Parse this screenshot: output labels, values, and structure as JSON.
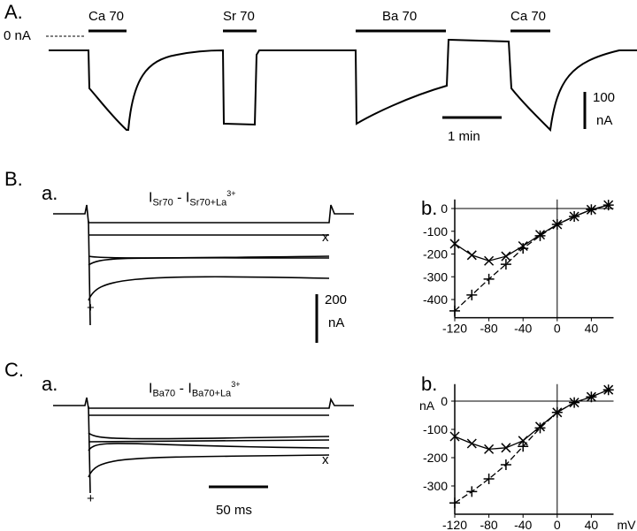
{
  "panels": {
    "A": {
      "letter": "A.",
      "zero_label": "0 nA",
      "bars": [
        "Ca 70",
        "Sr 70",
        "Ba 70",
        "Ca 70"
      ],
      "scale_current": [
        "100",
        "nA"
      ],
      "scale_time": "1 min"
    },
    "B": {
      "letter": "B.",
      "sub_a": "a.",
      "sub_b": "b.",
      "trace_title": {
        "i1": "I",
        "s1": "Sr70",
        "dash": " - ",
        "i2": "I",
        "s2": "Sr70+La",
        "sup": "3+"
      },
      "marker_plus": "+",
      "marker_x": "x",
      "scale_current": [
        "200",
        "nA"
      ]
    },
    "C": {
      "letter": "C.",
      "sub_a": "a.",
      "sub_b": "b.",
      "trace_title": {
        "i1": "I",
        "s1": "Ba70",
        "dash": " - ",
        "i2": "I",
        "s2": "Ba70+La",
        "sup": "3+"
      },
      "marker_plus": "+",
      "marker_x": "x",
      "scale_time": "50 ms"
    }
  },
  "chart_data": [
    {
      "type": "line",
      "panel": "B.b",
      "xlabel": "",
      "ylabel": "",
      "x": [
        -120,
        -100,
        -80,
        -60,
        -40,
        -20,
        0,
        20,
        40,
        60
      ],
      "xticks": [
        "-120",
        "-80",
        "-40",
        "0",
        "40"
      ],
      "yticks": [
        "0",
        "-100",
        "-200",
        "-300",
        "-400"
      ],
      "xlim": [
        -120,
        66
      ],
      "ylim": [
        -480,
        40
      ],
      "series": [
        {
          "marker": "x",
          "style": "solid",
          "values": [
            -155,
            -205,
            -230,
            -210,
            -165,
            -115,
            -70,
            -35,
            -5,
            15
          ]
        },
        {
          "marker": "+",
          "style": "dashed",
          "values": [
            -450,
            -380,
            -310,
            -245,
            -175,
            -120,
            -70,
            -35,
            -5,
            15
          ]
        }
      ]
    },
    {
      "type": "line",
      "panel": "C.b",
      "xlabel": "mV",
      "ylabel": "nA",
      "x": [
        -120,
        -100,
        -80,
        -60,
        -40,
        -20,
        0,
        20,
        40,
        60
      ],
      "xticks": [
        "-120",
        "-80",
        "-40",
        "0",
        "40"
      ],
      "yticks": [
        "0",
        "-100",
        "-200",
        "-300"
      ],
      "xlim": [
        -120,
        66
      ],
      "ylim": [
        -400,
        60
      ],
      "series": [
        {
          "marker": "x",
          "style": "solid",
          "values": [
            -125,
            -150,
            -170,
            -165,
            -140,
            -90,
            -40,
            -5,
            15,
            40
          ]
        },
        {
          "marker": "+",
          "style": "dashed",
          "values": [
            -360,
            -320,
            -275,
            -225,
            -160,
            -95,
            -40,
            -5,
            15,
            40
          ]
        }
      ]
    }
  ]
}
